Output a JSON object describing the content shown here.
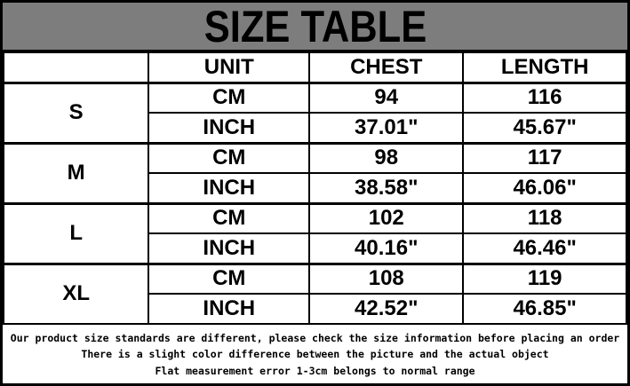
{
  "chart_data": {
    "type": "table",
    "title": "SIZE TABLE",
    "columns": [
      "",
      "UNIT",
      "CHEST",
      "LENGTH"
    ],
    "rows": [
      [
        "S",
        "CM",
        "94",
        "116"
      ],
      [
        "S",
        "INCH",
        "37.01\"",
        "45.67\""
      ],
      [
        "M",
        "CM",
        "98",
        "117"
      ],
      [
        "M",
        "INCH",
        "38.58\"",
        "46.06\""
      ],
      [
        "L",
        "CM",
        "102",
        "118"
      ],
      [
        "L",
        "INCH",
        "40.16\"",
        "46.46\""
      ],
      [
        "XL",
        "CM",
        "108",
        "119"
      ],
      [
        "XL",
        "INCH",
        "42.52\"",
        "46.85\""
      ]
    ],
    "annotations": [
      "Our product size standards are different, please check the size information before placing an order",
      "There is a slight color difference between the picture and the actual object",
      "Flat measurement error 1-3cm belongs to normal range"
    ],
    "layout": {
      "title_band_color": "#7d7d7d",
      "shaded_cell_color": "#d9d9d9",
      "border_color": "#000000",
      "grid": true
    }
  }
}
